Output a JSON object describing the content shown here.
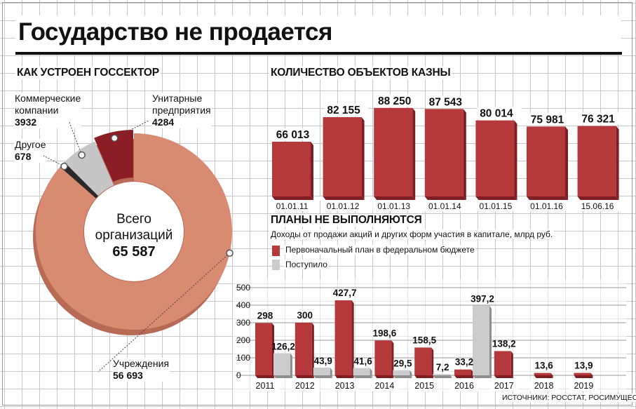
{
  "title": "Государство не продается",
  "sources": "ИСТОЧНИКИ: РОССТАТ, РОСИМУЩЕСТВО",
  "colors": {
    "red": "#b5383b",
    "red_side": "#7e1d22",
    "grey": "#cccccc",
    "grey_side": "#8f8f8f",
    "donut_main": "#d98b72",
    "donut_main_side": "#b86a55",
    "donut_unitary": "#8b1e24",
    "donut_commercial": "#c6c6c6",
    "donut_other": "#2a2a2a"
  },
  "chart_data": [
    {
      "type": "pie",
      "title": "КАК УСТРОЕН ГОССЕКТОР",
      "center_label": [
        "Всего",
        "организаций"
      ],
      "center_value": "65 587",
      "total": 65587,
      "slices": [
        {
          "label": "Учреждения",
          "value": 56693,
          "value_text": "56 693"
        },
        {
          "label": "Другое",
          "value": 678,
          "value_text": "678"
        },
        {
          "label": "Коммерческие компании",
          "label_lines": [
            "Коммерческие",
            "компании"
          ],
          "value": 3932,
          "value_text": "3932"
        },
        {
          "label": "Унитарные предприятия",
          "label_lines": [
            "Унитарные",
            "предприятия"
          ],
          "value": 4284,
          "value_text": "4284"
        }
      ]
    },
    {
      "type": "bar",
      "title": "КОЛИЧЕСТВО ОБЪЕКТОВ КАЗНЫ",
      "categories": [
        "01.01.11",
        "01.01.12",
        "01.01.13",
        "01.01.14",
        "01.01.15",
        "01.01.16",
        "15.06.16"
      ],
      "values": [
        66013,
        82155,
        88250,
        87543,
        80014,
        75981,
        76321
      ],
      "value_labels": [
        "66 013",
        "82 155",
        "88 250",
        "87 543",
        "80 014",
        "75 981",
        "76 321"
      ],
      "ylim": [
        30000,
        90000
      ],
      "grid": false
    },
    {
      "type": "bar",
      "title": "ПЛАНЫ НЕ ВЫПОЛНЯЮТСЯ",
      "subtitle": "Доходы от продажи акций и других форм участия в капитале, млрд руб.",
      "categories": [
        "2011",
        "2012",
        "2013",
        "2014",
        "2015",
        "2016",
        "2017",
        "2018",
        "2019"
      ],
      "series": [
        {
          "name": "Первоначальный план в федеральном бюджете",
          "values": [
            298,
            300,
            427.7,
            198.6,
            158.5,
            33.2,
            138.2,
            13.6,
            13.9
          ],
          "labels": [
            "298",
            "300",
            "427,7",
            "198,6",
            "158,5",
            "33,2",
            "138,2",
            "13,6",
            "13,9"
          ]
        },
        {
          "name": "Поступило",
          "values": [
            126.2,
            43.9,
            41.6,
            29.5,
            7.2,
            397.2,
            null,
            null,
            null
          ],
          "labels": [
            "126,2",
            "43,9",
            "41,6",
            "29,5",
            "7,2",
            "397,2",
            "",
            "",
            ""
          ]
        }
      ],
      "yticks": [
        "0",
        "100",
        "200",
        "300",
        "400",
        "500"
      ],
      "ylim": [
        0,
        500
      ],
      "grid": true
    }
  ]
}
